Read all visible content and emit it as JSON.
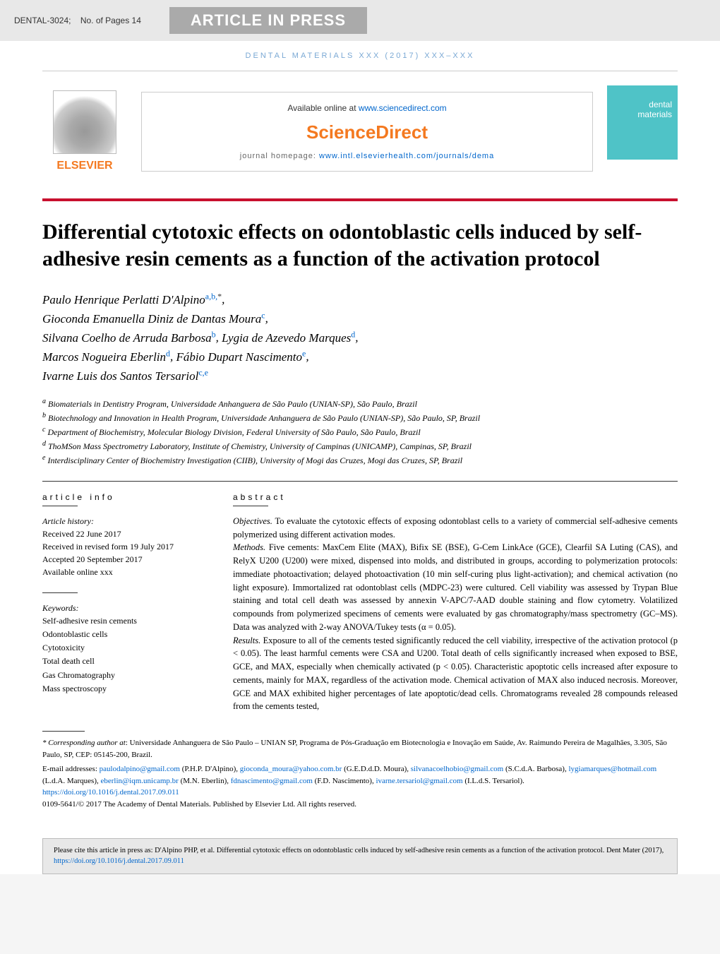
{
  "header": {
    "paper_id": "DENTAL-3024;",
    "pages_label": "No. of Pages 14",
    "press_badge": "ARTICLE IN PRESS",
    "journal_ref": "DENTAL MATERIALS XXX (2017) XXX–XXX"
  },
  "top": {
    "elsevier_label": "ELSEVIER",
    "available_text": "Available online at ",
    "available_link": "www.sciencedirect.com",
    "sciencedirect": "ScienceDirect",
    "homepage_label": "journal homepage: ",
    "homepage_link": "www.intl.elsevierhealth.com/journals/dema",
    "cover_title": "dental materials"
  },
  "title": "Differential cytotoxic effects on odontoblastic cells induced by self-adhesive resin cements as a function of the activation protocol",
  "authors": [
    {
      "name": "Paulo Henrique Perlatti D'Alpino",
      "sup": "a,b,*"
    },
    {
      "name": "Gioconda Emanuella Diniz de Dantas Moura",
      "sup": "c"
    },
    {
      "name": "Silvana Coelho de Arruda Barbosa",
      "sup": "b"
    },
    {
      "name": "Lygia de Azevedo Marques",
      "sup": "d"
    },
    {
      "name": "Marcos Nogueira Eberlin",
      "sup": "d"
    },
    {
      "name": "Fábio Dupart Nascimento",
      "sup": "e"
    },
    {
      "name": "Ivarne Luis dos Santos Tersariol",
      "sup": "c,e"
    }
  ],
  "affiliations": [
    {
      "sup": "a",
      "text": "Biomaterials in Dentistry Program, Universidade Anhanguera de São Paulo (UNIAN-SP), São Paulo, Brazil"
    },
    {
      "sup": "b",
      "text": "Biotechnology and Innovation in Health Program, Universidade Anhanguera de São Paulo (UNIAN-SP), São Paulo, SP, Brazil"
    },
    {
      "sup": "c",
      "text": "Department of Biochemistry, Molecular Biology Division, Federal University of São Paulo, São Paulo, Brazil"
    },
    {
      "sup": "d",
      "text": "ThoMSon Mass Spectrometry Laboratory, Institute of Chemistry, University of Campinas (UNICAMP), Campinas, SP, Brazil"
    },
    {
      "sup": "e",
      "text": "Interdisciplinary Center of Biochemistry Investigation (CIIB), University of Mogi das Cruzes, Mogi das Cruzes, SP, Brazil"
    }
  ],
  "article_info": {
    "header": "article info",
    "history_label": "Article history:",
    "received": "Received 22 June 2017",
    "revised": "Received in revised form 19 July 2017",
    "accepted": "Accepted 20 September 2017",
    "online": "Available online xxx",
    "keywords_label": "Keywords:",
    "keywords": [
      "Self-adhesive resin cements",
      "Odontoblastic cells",
      "Cytotoxicity",
      "Total death cell",
      "Gas Chromatography",
      "Mass spectroscopy"
    ]
  },
  "abstract": {
    "header": "abstract",
    "objectives_label": "Objectives.",
    "objectives": " To evaluate the cytotoxic effects of exposing odontoblast cells to a variety of commercial self-adhesive cements polymerized using different activation modes.",
    "methods_label": "Methods.",
    "methods": " Five cements: MaxCem Elite (MAX), Bifix SE (BSE), G-Cem LinkAce (GCE), Clearfil SA Luting (CAS), and RelyX U200 (U200) were mixed, dispensed into molds, and distributed in groups, according to polymerization protocols: immediate photoactivation; delayed photoactivation (10 min self-curing plus light-activation); and chemical activation (no light exposure). Immortalized rat odontoblast cells (MDPC-23) were cultured. Cell viability was assessed by Trypan Blue staining and total cell death was assessed by annexin V-APC/7-AAD double staining and flow cytometry. Volatilized compounds from polymerized specimens of cements were evaluated by gas chromatography/mass spectrometry (GC–MS). Data was analyzed with 2-way ANOVA/Tukey tests (α = 0.05).",
    "results_label": "Results.",
    "results": " Exposure to all of the cements tested significantly reduced the cell viability, irrespective of the activation protocol (p < 0.05). The least harmful cements were CSA and U200. Total death of cells significantly increased when exposed to BSE, GCE, and MAX, especially when chemically activated (p < 0.05). Characteristic apoptotic cells increased after exposure to cements, mainly for MAX, regardless of the activation mode. Chemical activation of MAX also induced necrosis. Moreover, GCE and MAX exhibited higher percentages of late apoptotic/dead cells. Chromatograms revealed 28 compounds released from the cements tested,"
  },
  "footer": {
    "corresponding_label": "* Corresponding author at",
    "corresponding": ": Universidade Anhanguera de São Paulo – UNIAN SP, Programa de Pós-Graduação em Biotecnologia e Inovação em Saúde, Av. Raimundo Pereira de Magalhães, 3.305, São Paulo, SP, CEP: 05145-200, Brazil.",
    "email_label": "E-mail addresses:",
    "emails": [
      {
        "addr": "paulodalpino@gmail.com",
        "name": "(P.H.P. D'Alpino)"
      },
      {
        "addr": "gioconda_moura@yahoo.com.br",
        "name": "(G.E.D.d.D. Moura)"
      },
      {
        "addr": "silvanacoelhobio@gmail.com",
        "name": "(S.C.d.A. Barbosa)"
      },
      {
        "addr": "lygiamarques@hotmail.com",
        "name": "(L.d.A. Marques)"
      },
      {
        "addr": "eberlin@iqm.unicamp.br",
        "name": "(M.N. Eberlin)"
      },
      {
        "addr": "fdnascimento@gmail.com",
        "name": "(F.D. Nascimento)"
      },
      {
        "addr": "ivarne.tersariol@gmail.com",
        "name": "(I.L.d.S. Tersariol)"
      }
    ],
    "doi": "https://doi.org/10.1016/j.dental.2017.09.011",
    "copyright": "0109-5641/© 2017 The Academy of Dental Materials. Published by Elsevier Ltd. All rights reserved."
  },
  "cite_box": {
    "text": "Please cite this article in press as: D'Alpino PHP, et al. Differential cytotoxic effects on odontoblastic cells induced by self-adhesive resin cements as a function of the activation protocol. Dent Mater (2017), ",
    "link": "https://doi.org/10.1016/j.dental.2017.09.011"
  },
  "colors": {
    "orange": "#f47920",
    "blue_link": "#0066cc",
    "red_bar": "#c8102e",
    "cover_teal": "#4fc3c7",
    "grey_bg": "#e8e8e8"
  }
}
